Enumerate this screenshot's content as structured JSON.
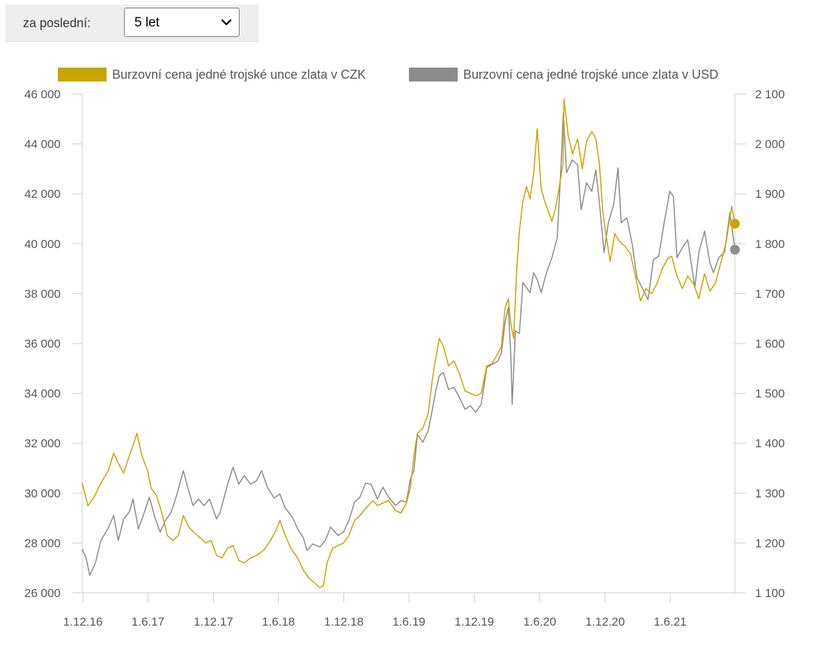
{
  "filter": {
    "label": "za poslední:",
    "selected": "5 let",
    "options": [
      "5 let"
    ]
  },
  "colors": {
    "czk": "#c8a600",
    "usd": "#8c8c8c",
    "axis": "#cccccc",
    "text": "#555555"
  },
  "chart_data": {
    "type": "line",
    "title": "",
    "x_tick_labels": [
      "1.12.16",
      "1.6.17",
      "1.12.17",
      "1.6.18",
      "1.12.18",
      "1.6.19",
      "1.12.19",
      "1.6.20",
      "1.12.20",
      "1.6.21"
    ],
    "x_range": [
      "2016-11-29",
      "2021-11-29"
    ],
    "y_left": {
      "ticks": [
        "26 000",
        "28 000",
        "30 000",
        "32 000",
        "34 000",
        "36 000",
        "38 000",
        "40 000",
        "42 000",
        "44 000",
        "46 000"
      ],
      "range": [
        26000,
        46000
      ]
    },
    "y_right": {
      "ticks": [
        "1 100",
        "1 200",
        "1 300",
        "1 400",
        "1 500",
        "1 600",
        "1 700",
        "1 800",
        "1 900",
        "2 000",
        "2 100"
      ],
      "range": [
        1100,
        2100
      ]
    },
    "legend_position": "top",
    "grid": false,
    "series": [
      {
        "name": "Burzovní cena jedné trojské unce zlata v CZK",
        "axis": "left",
        "color": "#c8a600",
        "points": [
          [
            "2016-11-29",
            30400
          ],
          [
            "2016-12-15",
            29500
          ],
          [
            "2016-12-31",
            29800
          ],
          [
            "2017-01-20",
            30400
          ],
          [
            "2017-02-10",
            30900
          ],
          [
            "2017-02-25",
            31600
          ],
          [
            "2017-03-10",
            31200
          ],
          [
            "2017-03-25",
            30800
          ],
          [
            "2017-04-10",
            31500
          ],
          [
            "2017-04-20",
            31900
          ],
          [
            "2017-05-01",
            32400
          ],
          [
            "2017-05-15",
            31500
          ],
          [
            "2017-05-31",
            30900
          ],
          [
            "2017-06-10",
            30200
          ],
          [
            "2017-06-25",
            29900
          ],
          [
            "2017-07-10",
            29200
          ],
          [
            "2017-07-25",
            28300
          ],
          [
            "2017-08-10",
            28100
          ],
          [
            "2017-08-25",
            28300
          ],
          [
            "2017-09-08",
            29100
          ],
          [
            "2017-09-25",
            28600
          ],
          [
            "2017-10-10",
            28400
          ],
          [
            "2017-10-25",
            28200
          ],
          [
            "2017-11-10",
            28000
          ],
          [
            "2017-11-25",
            28100
          ],
          [
            "2017-12-10",
            27500
          ],
          [
            "2017-12-25",
            27400
          ],
          [
            "2018-01-10",
            27800
          ],
          [
            "2018-01-25",
            27900
          ],
          [
            "2018-02-10",
            27300
          ],
          [
            "2018-02-25",
            27200
          ],
          [
            "2018-03-15",
            27400
          ],
          [
            "2018-04-01",
            27500
          ],
          [
            "2018-04-20",
            27700
          ],
          [
            "2018-05-10",
            28100
          ],
          [
            "2018-05-25",
            28500
          ],
          [
            "2018-06-05",
            28900
          ],
          [
            "2018-06-20",
            28300
          ],
          [
            "2018-07-05",
            27800
          ],
          [
            "2018-07-25",
            27400
          ],
          [
            "2018-08-10",
            26900
          ],
          [
            "2018-08-25",
            26600
          ],
          [
            "2018-09-10",
            26400
          ],
          [
            "2018-09-25",
            26200
          ],
          [
            "2018-10-05",
            26300
          ],
          [
            "2018-10-15",
            27200
          ],
          [
            "2018-10-31",
            27800
          ],
          [
            "2018-11-15",
            27900
          ],
          [
            "2018-11-30",
            28000
          ],
          [
            "2018-12-15",
            28300
          ],
          [
            "2018-12-31",
            28900
          ],
          [
            "2019-01-15",
            29100
          ],
          [
            "2019-02-01",
            29400
          ],
          [
            "2019-02-20",
            29700
          ],
          [
            "2019-03-05",
            29500
          ],
          [
            "2019-03-20",
            29600
          ],
          [
            "2019-04-05",
            29700
          ],
          [
            "2019-04-25",
            29300
          ],
          [
            "2019-05-10",
            29200
          ],
          [
            "2019-05-25",
            29600
          ],
          [
            "2019-06-05",
            30200
          ],
          [
            "2019-06-15",
            31500
          ],
          [
            "2019-06-25",
            32400
          ],
          [
            "2019-07-10",
            32600
          ],
          [
            "2019-07-25",
            33200
          ],
          [
            "2019-08-05",
            34500
          ],
          [
            "2019-08-15",
            35400
          ],
          [
            "2019-08-25",
            36200
          ],
          [
            "2019-09-05",
            35900
          ],
          [
            "2019-09-20",
            35100
          ],
          [
            "2019-10-05",
            35300
          ],
          [
            "2019-10-20",
            34800
          ],
          [
            "2019-11-05",
            34100
          ],
          [
            "2019-11-20",
            34000
          ],
          [
            "2019-12-05",
            33900
          ],
          [
            "2019-12-20",
            34000
          ],
          [
            "2020-01-05",
            35100
          ],
          [
            "2020-01-20",
            35200
          ],
          [
            "2020-02-05",
            35600
          ],
          [
            "2020-02-15",
            35900
          ],
          [
            "2020-02-25",
            37400
          ],
          [
            "2020-03-05",
            37800
          ],
          [
            "2020-03-12",
            36800
          ],
          [
            "2020-03-20",
            36200
          ],
          [
            "2020-03-28",
            38800
          ],
          [
            "2020-04-05",
            40500
          ],
          [
            "2020-04-15",
            41700
          ],
          [
            "2020-04-25",
            42300
          ],
          [
            "2020-05-05",
            41800
          ],
          [
            "2020-05-15",
            42800
          ],
          [
            "2020-05-25",
            44600
          ],
          [
            "2020-06-05",
            42200
          ],
          [
            "2020-06-15",
            41700
          ],
          [
            "2020-06-25",
            41300
          ],
          [
            "2020-07-05",
            40900
          ],
          [
            "2020-07-15",
            41400
          ],
          [
            "2020-07-25",
            42200
          ],
          [
            "2020-08-05",
            43200
          ],
          [
            "2020-08-08",
            45800
          ],
          [
            "2020-08-20",
            44300
          ],
          [
            "2020-09-01",
            43600
          ],
          [
            "2020-09-15",
            44200
          ],
          [
            "2020-09-28",
            43000
          ],
          [
            "2020-10-10",
            44100
          ],
          [
            "2020-10-25",
            44500
          ],
          [
            "2020-11-05",
            44200
          ],
          [
            "2020-11-15",
            43200
          ],
          [
            "2020-11-25",
            41200
          ],
          [
            "2020-12-05",
            40200
          ],
          [
            "2020-12-15",
            39300
          ],
          [
            "2020-12-28",
            40400
          ],
          [
            "2021-01-10",
            40100
          ],
          [
            "2021-01-25",
            39900
          ],
          [
            "2021-02-10",
            39600
          ],
          [
            "2021-02-25",
            38600
          ],
          [
            "2021-03-10",
            37700
          ],
          [
            "2021-03-25",
            38200
          ],
          [
            "2021-04-10",
            38000
          ],
          [
            "2021-04-25",
            38400
          ],
          [
            "2021-05-10",
            39000
          ],
          [
            "2021-05-25",
            39400
          ],
          [
            "2021-06-05",
            39500
          ],
          [
            "2021-06-20",
            38700
          ],
          [
            "2021-07-05",
            38200
          ],
          [
            "2021-07-20",
            38700
          ],
          [
            "2021-08-05",
            38400
          ],
          [
            "2021-08-20",
            37800
          ],
          [
            "2021-09-05",
            38800
          ],
          [
            "2021-09-20",
            38100
          ],
          [
            "2021-10-05",
            38400
          ],
          [
            "2021-10-20",
            39200
          ],
          [
            "2021-11-05",
            40100
          ],
          [
            "2021-11-20",
            41500
          ],
          [
            "2021-11-29",
            40800
          ]
        ]
      },
      {
        "name": "Burzovní cena jedné trojské unce zlata v USD",
        "axis": "right",
        "color": "#8c8c8c",
        "points": [
          [
            "2016-11-29",
            1188
          ],
          [
            "2016-12-10",
            1170
          ],
          [
            "2016-12-20",
            1135
          ],
          [
            "2017-01-05",
            1160
          ],
          [
            "2017-01-20",
            1205
          ],
          [
            "2017-02-10",
            1230
          ],
          [
            "2017-02-25",
            1255
          ],
          [
            "2017-03-10",
            1205
          ],
          [
            "2017-03-25",
            1248
          ],
          [
            "2017-04-10",
            1262
          ],
          [
            "2017-04-20",
            1288
          ],
          [
            "2017-05-05",
            1228
          ],
          [
            "2017-05-20",
            1258
          ],
          [
            "2017-06-05",
            1292
          ],
          [
            "2017-06-20",
            1252
          ],
          [
            "2017-07-05",
            1222
          ],
          [
            "2017-07-20",
            1245
          ],
          [
            "2017-08-05",
            1262
          ],
          [
            "2017-08-20",
            1295
          ],
          [
            "2017-09-08",
            1345
          ],
          [
            "2017-09-20",
            1312
          ],
          [
            "2017-10-05",
            1275
          ],
          [
            "2017-10-20",
            1288
          ],
          [
            "2017-11-05",
            1275
          ],
          [
            "2017-11-20",
            1288
          ],
          [
            "2017-12-10",
            1248
          ],
          [
            "2017-12-20",
            1262
          ],
          [
            "2018-01-10",
            1318
          ],
          [
            "2018-01-25",
            1352
          ],
          [
            "2018-02-10",
            1318
          ],
          [
            "2018-02-25",
            1335
          ],
          [
            "2018-03-15",
            1318
          ],
          [
            "2018-04-01",
            1325
          ],
          [
            "2018-04-15",
            1345
          ],
          [
            "2018-05-01",
            1312
          ],
          [
            "2018-05-20",
            1290
          ],
          [
            "2018-06-05",
            1298
          ],
          [
            "2018-06-20",
            1270
          ],
          [
            "2018-07-10",
            1252
          ],
          [
            "2018-07-25",
            1228
          ],
          [
            "2018-08-10",
            1210
          ],
          [
            "2018-08-20",
            1185
          ],
          [
            "2018-09-05",
            1198
          ],
          [
            "2018-09-25",
            1192
          ],
          [
            "2018-10-10",
            1205
          ],
          [
            "2018-10-25",
            1232
          ],
          [
            "2018-11-15",
            1215
          ],
          [
            "2018-11-30",
            1222
          ],
          [
            "2018-12-15",
            1245
          ],
          [
            "2018-12-31",
            1282
          ],
          [
            "2019-01-15",
            1292
          ],
          [
            "2019-01-31",
            1320
          ],
          [
            "2019-02-15",
            1318
          ],
          [
            "2019-03-05",
            1288
          ],
          [
            "2019-03-20",
            1312
          ],
          [
            "2019-04-05",
            1292
          ],
          [
            "2019-04-25",
            1275
          ],
          [
            "2019-05-10",
            1285
          ],
          [
            "2019-05-25",
            1282
          ],
          [
            "2019-06-05",
            1328
          ],
          [
            "2019-06-15",
            1345
          ],
          [
            "2019-06-25",
            1418
          ],
          [
            "2019-07-10",
            1402
          ],
          [
            "2019-07-25",
            1425
          ],
          [
            "2019-08-05",
            1465
          ],
          [
            "2019-08-15",
            1505
          ],
          [
            "2019-08-25",
            1535
          ],
          [
            "2019-09-05",
            1542
          ],
          [
            "2019-09-20",
            1508
          ],
          [
            "2019-10-05",
            1512
          ],
          [
            "2019-10-20",
            1492
          ],
          [
            "2019-11-05",
            1468
          ],
          [
            "2019-11-20",
            1475
          ],
          [
            "2019-12-05",
            1462
          ],
          [
            "2019-12-20",
            1478
          ],
          [
            "2020-01-05",
            1552
          ],
          [
            "2020-01-20",
            1558
          ],
          [
            "2020-02-05",
            1565
          ],
          [
            "2020-02-15",
            1582
          ],
          [
            "2020-02-25",
            1642
          ],
          [
            "2020-03-05",
            1672
          ],
          [
            "2020-03-12",
            1578
          ],
          [
            "2020-03-16",
            1478
          ],
          [
            "2020-03-25",
            1625
          ],
          [
            "2020-04-05",
            1620
          ],
          [
            "2020-04-15",
            1722
          ],
          [
            "2020-04-25",
            1712
          ],
          [
            "2020-05-05",
            1702
          ],
          [
            "2020-05-15",
            1742
          ],
          [
            "2020-05-25",
            1728
          ],
          [
            "2020-06-05",
            1702
          ],
          [
            "2020-06-20",
            1742
          ],
          [
            "2020-07-05",
            1772
          ],
          [
            "2020-07-20",
            1812
          ],
          [
            "2020-07-31",
            1962
          ],
          [
            "2020-08-06",
            2062
          ],
          [
            "2020-08-15",
            1942
          ],
          [
            "2020-08-31",
            1968
          ],
          [
            "2020-09-15",
            1958
          ],
          [
            "2020-09-25",
            1868
          ],
          [
            "2020-10-10",
            1922
          ],
          [
            "2020-10-25",
            1905
          ],
          [
            "2020-11-05",
            1948
          ],
          [
            "2020-11-15",
            1882
          ],
          [
            "2020-11-28",
            1782
          ],
          [
            "2020-12-10",
            1842
          ],
          [
            "2020-12-25",
            1878
          ],
          [
            "2021-01-06",
            1952
          ],
          [
            "2021-01-15",
            1842
          ],
          [
            "2021-01-31",
            1852
          ],
          [
            "2021-02-15",
            1798
          ],
          [
            "2021-02-28",
            1732
          ],
          [
            "2021-03-10",
            1718
          ],
          [
            "2021-03-31",
            1688
          ],
          [
            "2021-04-15",
            1768
          ],
          [
            "2021-04-30",
            1775
          ],
          [
            "2021-05-15",
            1842
          ],
          [
            "2021-05-31",
            1905
          ],
          [
            "2021-06-10",
            1895
          ],
          [
            "2021-06-20",
            1772
          ],
          [
            "2021-07-05",
            1792
          ],
          [
            "2021-07-20",
            1808
          ],
          [
            "2021-08-09",
            1712
          ],
          [
            "2021-08-20",
            1782
          ],
          [
            "2021-09-05",
            1825
          ],
          [
            "2021-09-20",
            1762
          ],
          [
            "2021-09-30",
            1742
          ],
          [
            "2021-10-15",
            1772
          ],
          [
            "2021-10-31",
            1783
          ],
          [
            "2021-11-15",
            1862
          ],
          [
            "2021-11-29",
            1788
          ]
        ]
      }
    ]
  }
}
